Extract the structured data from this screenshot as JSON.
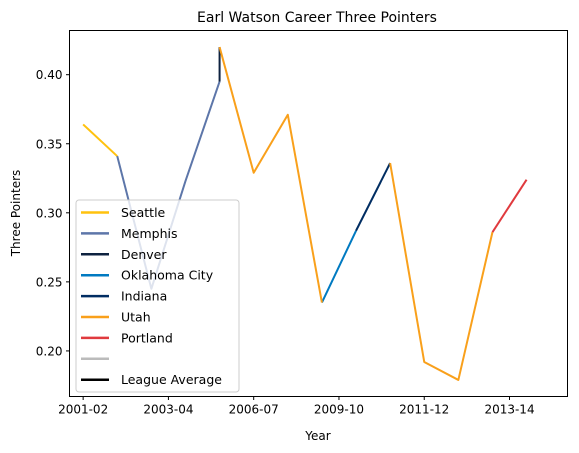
{
  "chart_data": {
    "type": "line",
    "title": "Earl Watson Career Three Pointers",
    "xlabel": "Year",
    "ylabel": "Three Pointers",
    "x_tick_labels": [
      "2001-02",
      "2003-04",
      "2006-07",
      "2009-10",
      "2011-12",
      "2013-14"
    ],
    "y_ticks": [
      0.2,
      0.25,
      0.3,
      0.35,
      0.4
    ],
    "y_tick_labels": [
      "0.20",
      "0.25",
      "0.30",
      "0.35",
      "0.40"
    ],
    "xlim": [
      2000.6,
      2015.2
    ],
    "ylim": [
      0.167,
      0.432
    ],
    "legend_position": "lower-left",
    "series": [
      {
        "name": "Seattle",
        "color": "#FFC20E",
        "points": [
          [
            2001,
            0.364
          ],
          [
            2002,
            0.341
          ]
        ]
      },
      {
        "name": "Memphis",
        "color": "#5D76A9",
        "points": [
          [
            2002,
            0.341
          ],
          [
            2003,
            0.245
          ],
          [
            2004,
            0.323
          ],
          [
            2005,
            0.395
          ]
        ]
      },
      {
        "name": "Denver",
        "color": "#0E2240",
        "points": [
          [
            2005,
            0.395
          ],
          [
            2005,
            0.42
          ]
        ]
      },
      {
        "name": "Oklahoma City",
        "color": "#007AC1",
        "points": [
          [
            2008,
            0.235
          ],
          [
            2009,
            0.287
          ]
        ]
      },
      {
        "name": "Indiana",
        "color": "#002D62",
        "points": [
          [
            2009,
            0.287
          ],
          [
            2010,
            0.336
          ]
        ]
      },
      {
        "name": "Utah",
        "color": "#F9A01B",
        "points": [
          [
            2005,
            0.42
          ],
          [
            2006,
            0.329
          ],
          [
            2007,
            0.371
          ],
          [
            2008,
            0.235
          ]
        ]
      },
      {
        "name": "Utah",
        "color": "#F9A01B",
        "points": [
          [
            2010,
            0.336
          ],
          [
            2011,
            0.192
          ],
          [
            2012,
            0.179
          ],
          [
            2013,
            0.286
          ]
        ]
      },
      {
        "name": "Portland",
        "color": "#E03A3E",
        "points": [
          [
            2013,
            0.286
          ],
          [
            2014,
            0.324
          ]
        ]
      }
    ],
    "legend": [
      {
        "label": "Seattle",
        "color": "#FFC20E"
      },
      {
        "label": "Memphis",
        "color": "#5D76A9"
      },
      {
        "label": "Denver",
        "color": "#0E2240"
      },
      {
        "label": "Oklahoma City",
        "color": "#007AC1"
      },
      {
        "label": "Indiana",
        "color": "#002D62"
      },
      {
        "label": "Utah",
        "color": "#F9A01B"
      },
      {
        "label": "Portland",
        "color": "#E03A3E"
      },
      {
        "label": "",
        "color": "#BBBBBB"
      },
      {
        "label": "League Average",
        "color": "#000000"
      }
    ]
  }
}
